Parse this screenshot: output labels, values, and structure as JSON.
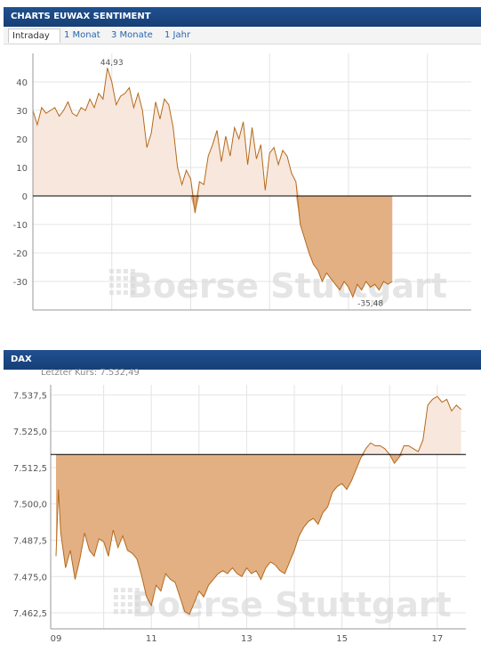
{
  "panel1": {
    "title": "CHARTS EUWAX SENTIMENT",
    "tabs": [
      {
        "label": "Intraday",
        "active": true
      },
      {
        "label": "1 Monat",
        "active": false
      },
      {
        "label": "3 Monate",
        "active": false
      },
      {
        "label": "1 Jahr",
        "active": false
      }
    ]
  },
  "panel2": {
    "title": "DAX",
    "last_price_label": "Letzter Kurs: 7.532,49"
  },
  "watermark": "Boerse Stuttgart",
  "colors": {
    "header": "#1c4a86",
    "line": "#b46a1c",
    "fill_light": "#f8e7dc",
    "fill_dark": "#e3b084"
  },
  "chart_data": [
    {
      "type": "area",
      "title": "",
      "xlabel": "",
      "ylabel": "",
      "ylim": [
        -40,
        50
      ],
      "y_ticks": [
        -30,
        -20,
        -10,
        0,
        10,
        20,
        30,
        40
      ],
      "y_tick_labels": [
        "-30",
        "-20",
        "-10",
        "0",
        "10",
        "20",
        "30",
        "40"
      ],
      "baseline": 0,
      "grid": true,
      "annotations": [
        {
          "label": "44,93",
          "x": 0.18,
          "y": 44.93
        },
        {
          "label": "-35,48",
          "x": 0.77,
          "y": -35.48
        }
      ],
      "x": [
        0.0,
        0.01,
        0.02,
        0.03,
        0.04,
        0.05,
        0.06,
        0.07,
        0.08,
        0.09,
        0.1,
        0.11,
        0.12,
        0.13,
        0.14,
        0.15,
        0.16,
        0.17,
        0.18,
        0.19,
        0.2,
        0.21,
        0.22,
        0.23,
        0.24,
        0.25,
        0.26,
        0.27,
        0.28,
        0.29,
        0.3,
        0.31,
        0.32,
        0.33,
        0.34,
        0.35,
        0.36,
        0.37,
        0.38,
        0.39,
        0.4,
        0.41,
        0.42,
        0.43,
        0.44,
        0.45,
        0.46,
        0.47,
        0.48,
        0.49,
        0.5,
        0.51,
        0.52,
        0.53,
        0.54,
        0.55,
        0.56,
        0.57,
        0.58,
        0.59,
        0.6,
        0.61,
        0.62,
        0.63,
        0.64,
        0.65,
        0.66,
        0.67,
        0.68,
        0.69,
        0.7,
        0.71,
        0.72,
        0.73,
        0.74,
        0.75,
        0.76,
        0.77,
        0.78,
        0.79,
        0.8,
        0.81,
        0.82
      ],
      "values": [
        30,
        25,
        31,
        29,
        30,
        31,
        28,
        30,
        33,
        29,
        28,
        31,
        30,
        34,
        31,
        36,
        34,
        44.93,
        40,
        32,
        35,
        36,
        38,
        31,
        36,
        30,
        17,
        22,
        33,
        27,
        34,
        32,
        24,
        10,
        4,
        9,
        6,
        -6,
        5,
        4,
        14,
        18,
        23,
        12,
        21,
        14,
        24,
        20,
        26,
        11,
        24,
        13,
        18,
        2,
        15,
        17,
        11,
        16,
        14,
        8,
        5,
        -10,
        -15,
        -20,
        -24,
        -26,
        -30,
        -27,
        -29,
        -31,
        -33,
        -30,
        -32,
        -35.48,
        -31,
        -33,
        -30,
        -32,
        -31,
        -33,
        -30,
        -31,
        -30
      ]
    },
    {
      "type": "area",
      "title": "",
      "xlabel": "",
      "ylabel": "",
      "ylim": [
        7457,
        7541
      ],
      "y_ticks": [
        7462.5,
        7475.0,
        7487.5,
        7500.0,
        7512.5,
        7525.0,
        7537.5
      ],
      "y_tick_labels": [
        "7.462,5",
        "7.475,0",
        "7.487,5",
        "7.500,0",
        "7.512,5",
        "7.525,0",
        "7.537,5"
      ],
      "xlim": [
        9,
        17.6
      ],
      "x_ticks": [
        9,
        11,
        13,
        15,
        17
      ],
      "x_tick_labels": [
        "09",
        "11",
        "13",
        "15",
        "17"
      ],
      "baseline": 7517,
      "grid": true,
      "x": [
        9.0,
        9.05,
        9.1,
        9.2,
        9.3,
        9.4,
        9.5,
        9.6,
        9.7,
        9.8,
        9.9,
        10.0,
        10.1,
        10.2,
        10.3,
        10.4,
        10.5,
        10.6,
        10.7,
        10.8,
        10.9,
        11.0,
        11.1,
        11.2,
        11.3,
        11.4,
        11.5,
        11.6,
        11.7,
        11.8,
        11.9,
        12.0,
        12.1,
        12.2,
        12.3,
        12.4,
        12.5,
        12.6,
        12.7,
        12.8,
        12.9,
        13.0,
        13.1,
        13.2,
        13.3,
        13.4,
        13.5,
        13.6,
        13.7,
        13.8,
        13.9,
        14.0,
        14.1,
        14.2,
        14.3,
        14.4,
        14.5,
        14.6,
        14.7,
        14.8,
        14.9,
        15.0,
        15.1,
        15.2,
        15.3,
        15.4,
        15.5,
        15.6,
        15.7,
        15.8,
        15.9,
        16.0,
        16.1,
        16.2,
        16.3,
        16.4,
        16.5,
        16.6,
        16.7,
        16.8,
        16.9,
        17.0,
        17.1,
        17.2,
        17.3,
        17.4,
        17.5
      ],
      "values": [
        7482,
        7505,
        7490,
        7478,
        7484,
        7474,
        7481,
        7490,
        7484,
        7482,
        7488,
        7487,
        7482,
        7491,
        7485,
        7489,
        7484,
        7483,
        7481,
        7475,
        7468,
        7465,
        7472,
        7470,
        7476,
        7474,
        7473,
        7468,
        7463,
        7462,
        7466,
        7470,
        7468,
        7472,
        7474,
        7476,
        7477,
        7476,
        7478,
        7476,
        7475,
        7478,
        7476,
        7477,
        7474,
        7478,
        7480,
        7479,
        7477,
        7476,
        7480,
        7484,
        7489,
        7492,
        7494,
        7495,
        7493,
        7497,
        7499,
        7504,
        7506,
        7507,
        7505,
        7508,
        7512,
        7516,
        7519,
        7521,
        7520,
        7520,
        7519,
        7517,
        7514,
        7516,
        7520,
        7520,
        7519,
        7518,
        7522,
        7534,
        7536,
        7537,
        7535,
        7536,
        7532,
        7534,
        7532.49
      ]
    }
  ]
}
